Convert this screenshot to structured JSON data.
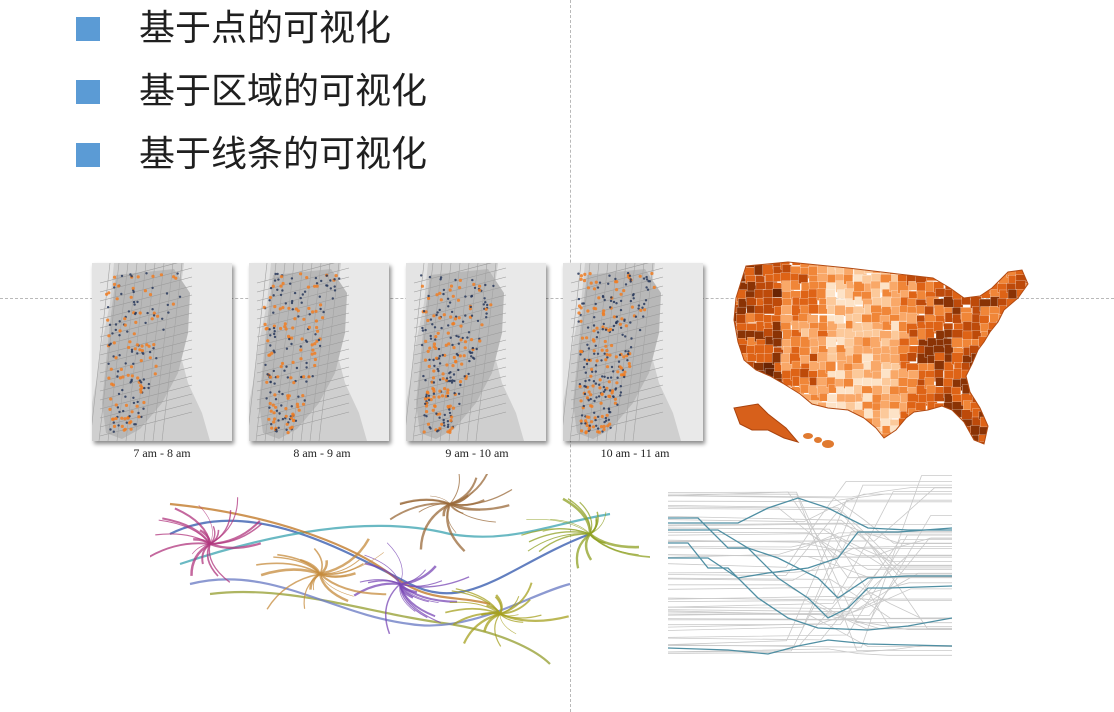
{
  "bullets": [
    {
      "text": "基于点的可视化"
    },
    {
      "text": "基于区域的可视化"
    },
    {
      "text": "基于线条的可视化"
    }
  ],
  "map_panels": [
    {
      "caption": "7 am - 8 am"
    },
    {
      "caption": "8 am - 9 am"
    },
    {
      "caption": "9 am - 10 am"
    },
    {
      "caption": "10 am - 11 am"
    }
  ],
  "colors": {
    "bullet_square": "#5b9bd5",
    "point_orange": "#f07c22",
    "point_navy": "#27375a",
    "choropleth_dark": "#7a2a04",
    "choropleth_light": "#fde3c7",
    "line_highlight": "#4f8fa3",
    "guide_line": "#b9b9b9"
  }
}
